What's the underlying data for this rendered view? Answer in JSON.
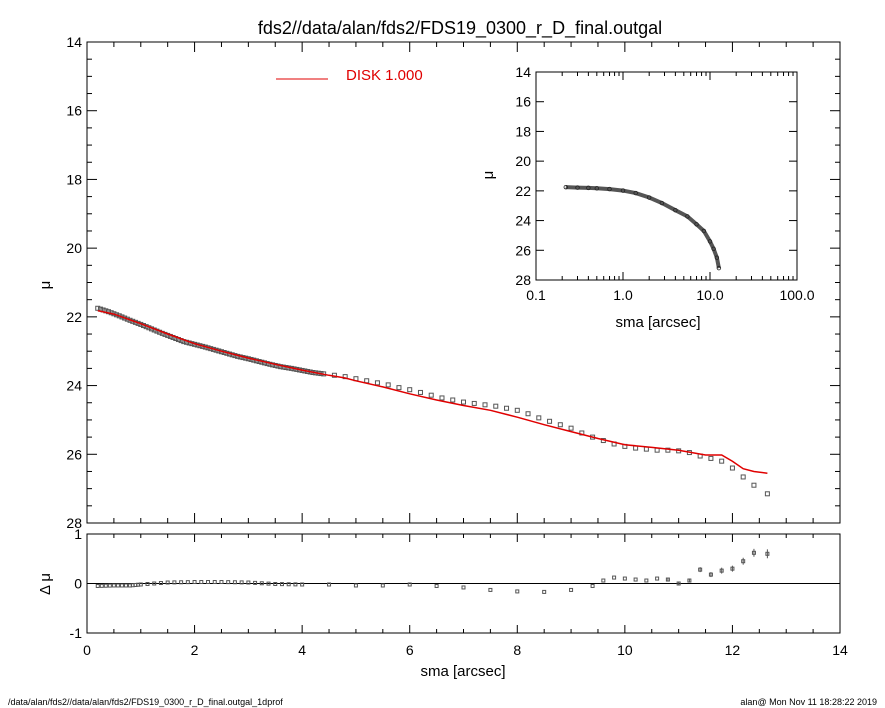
{
  "title": "fds2//data/alan/fds2/FDS19_0300_r_D_final.outgal",
  "footer_left": "/data/alan/fds2//data/alan/fds2/FDS19_0300_r_D_final.outgal_1dprof",
  "footer_right": "alan@  Mon Nov 11 18:28:22 2019",
  "colors": {
    "model": "#e00000",
    "data": "#555555",
    "axis": "#000000"
  },
  "chart_data": [
    {
      "type": "scatter",
      "role": "main profile",
      "xlabel": "",
      "ylabel": "μ",
      "xlim": [
        0,
        14
      ],
      "ylim": [
        28,
        14
      ],
      "yticks": [
        "14",
        "16",
        "18",
        "20",
        "22",
        "24",
        "26",
        "28"
      ],
      "legend": {
        "label": "DISK  1.000",
        "placement": "top"
      },
      "series": [
        {
          "name": "data",
          "x": [
            0.2,
            0.4,
            0.6,
            0.8,
            1.0,
            1.2,
            1.4,
            1.6,
            1.8,
            2.0,
            2.2,
            2.4,
            2.6,
            2.8,
            3.0,
            3.2,
            3.4,
            3.6,
            3.8,
            4.0,
            4.2,
            4.4,
            4.6,
            4.8,
            5.0,
            5.2,
            5.4,
            5.6,
            5.8,
            6.0,
            6.2,
            6.4,
            6.6,
            6.8,
            7.0,
            7.2,
            7.4,
            7.6,
            7.8,
            8.0,
            8.2,
            8.4,
            8.6,
            8.8,
            9.0,
            9.2,
            9.4,
            9.6,
            9.8,
            10.0,
            10.2,
            10.4,
            10.6,
            10.8,
            11.0,
            11.2,
            11.4,
            11.6,
            11.8,
            12.0,
            12.2,
            12.4,
            12.65
          ],
          "y": [
            21.75,
            21.85,
            21.97,
            22.1,
            22.22,
            22.35,
            22.48,
            22.6,
            22.72,
            22.8,
            22.88,
            22.97,
            23.06,
            23.15,
            23.22,
            23.3,
            23.38,
            23.45,
            23.5,
            23.56,
            23.62,
            23.66,
            23.7,
            23.74,
            23.8,
            23.86,
            23.92,
            23.98,
            24.06,
            24.12,
            24.2,
            24.28,
            24.36,
            24.42,
            24.48,
            24.52,
            24.56,
            24.6,
            24.66,
            24.72,
            24.82,
            24.94,
            25.04,
            25.14,
            25.24,
            25.38,
            25.5,
            25.6,
            25.7,
            25.77,
            25.82,
            25.85,
            25.88,
            25.88,
            25.9,
            25.95,
            26.05,
            26.12,
            26.2,
            26.4,
            26.66,
            26.9,
            27.15
          ]
        },
        {
          "name": "DISK  1.000",
          "x": [
            0.2,
            0.5,
            1.0,
            1.5,
            2.0,
            2.5,
            3.0,
            3.5,
            4.0,
            4.5,
            4.8,
            5.0,
            5.5,
            6.0,
            6.5,
            7.0,
            7.5,
            8.0,
            8.5,
            9.0,
            9.5,
            10.0,
            10.5,
            11.0,
            11.5,
            11.8,
            12.0,
            12.2,
            12.4,
            12.65
          ],
          "y": [
            21.82,
            21.92,
            22.2,
            22.5,
            22.78,
            23.0,
            23.2,
            23.38,
            23.55,
            23.7,
            23.78,
            23.86,
            24.04,
            24.24,
            24.42,
            24.58,
            24.72,
            24.92,
            25.14,
            25.34,
            25.54,
            25.72,
            25.8,
            25.88,
            26.02,
            26.02,
            26.2,
            26.42,
            26.5,
            26.55
          ]
        }
      ]
    },
    {
      "type": "scatter",
      "role": "inset",
      "xlabel": "sma [arcsec]",
      "ylabel": "μ",
      "xscale": "log",
      "xlim": [
        0.1,
        100.0
      ],
      "ylim": [
        28,
        14
      ],
      "xticks": [
        "0.1",
        "1.0",
        "10.0",
        "100.0"
      ],
      "yticks": [
        "14",
        "16",
        "18",
        "20",
        "22",
        "24",
        "26",
        "28"
      ],
      "series": [
        {
          "name": "data",
          "x": [
            0.22,
            0.3,
            0.4,
            0.5,
            0.7,
            1.0,
            1.4,
            2.0,
            2.8,
            4.0,
            5.5,
            7.0,
            8.5,
            10.0,
            11.0,
            12.0,
            12.65
          ],
          "y": [
            21.75,
            21.78,
            21.8,
            21.83,
            21.88,
            21.98,
            22.15,
            22.45,
            22.82,
            23.3,
            23.72,
            24.25,
            24.7,
            25.4,
            25.9,
            26.5,
            27.2
          ]
        }
      ]
    },
    {
      "type": "scatter",
      "role": "residuals",
      "xlabel": "sma [arcsec]",
      "ylabel": "Δ μ",
      "xlim": [
        0,
        14
      ],
      "ylim": [
        -1,
        1
      ],
      "xticks": [
        "0",
        "2",
        "4",
        "6",
        "8",
        "10",
        "12",
        "14"
      ],
      "yticks": [
        "1",
        "0",
        "-1"
      ],
      "series": [
        {
          "name": "residual",
          "x": [
            0.2,
            0.5,
            0.8,
            1.0,
            1.5,
            2.0,
            2.5,
            3.0,
            3.5,
            4.0,
            4.5,
            5.0,
            5.5,
            6.0,
            6.5,
            7.0,
            7.5,
            8.0,
            8.5,
            9.0,
            9.4,
            9.6,
            9.8,
            10.0,
            10.2,
            10.4,
            10.6,
            10.8,
            11.0,
            11.2,
            11.4,
            11.6,
            11.8,
            12.0,
            12.2,
            12.4,
            12.65
          ],
          "y": [
            -0.05,
            -0.04,
            -0.04,
            -0.02,
            0.02,
            0.03,
            0.03,
            0.02,
            -0.01,
            -0.02,
            -0.02,
            -0.04,
            -0.04,
            -0.02,
            -0.05,
            -0.08,
            -0.13,
            -0.16,
            -0.17,
            -0.13,
            -0.05,
            0.06,
            0.12,
            0.1,
            0.08,
            0.06,
            0.1,
            0.08,
            0.0,
            0.06,
            0.28,
            0.18,
            0.26,
            0.3,
            0.45,
            0.62,
            0.6
          ],
          "err": [
            0.01,
            0.01,
            0.01,
            0.01,
            0.01,
            0.01,
            0.01,
            0.01,
            0.01,
            0.01,
            0.01,
            0.01,
            0.01,
            0.01,
            0.01,
            0.01,
            0.01,
            0.01,
            0.01,
            0.01,
            0.01,
            0.02,
            0.02,
            0.02,
            0.02,
            0.02,
            0.02,
            0.03,
            0.03,
            0.04,
            0.05,
            0.05,
            0.06,
            0.06,
            0.07,
            0.08,
            0.09
          ]
        }
      ]
    }
  ]
}
